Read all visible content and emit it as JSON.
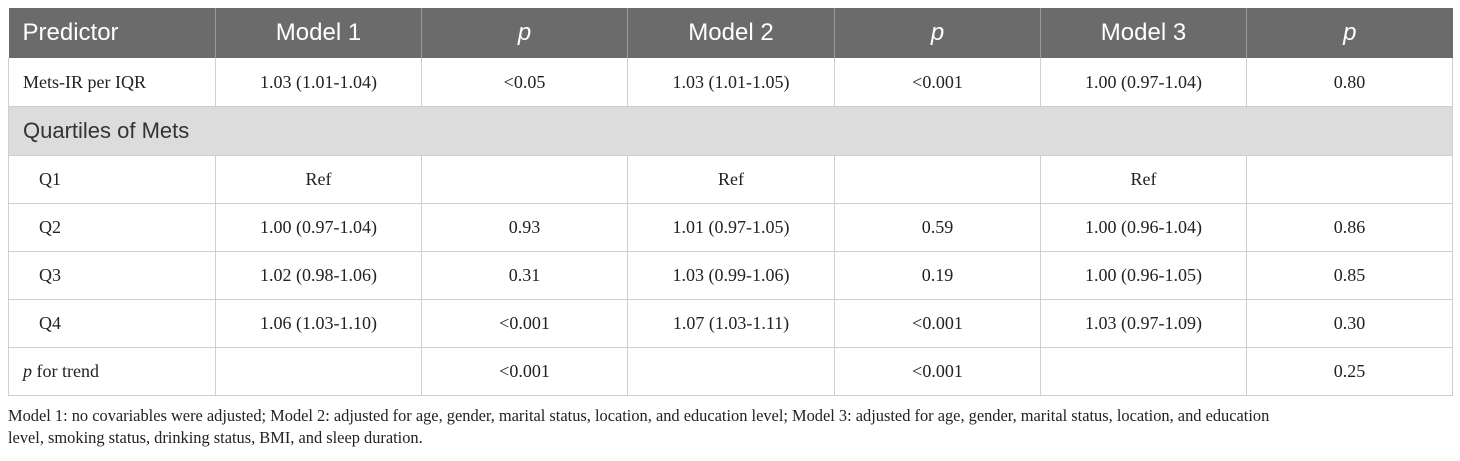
{
  "table": {
    "headers": [
      "Predictor",
      "Model 1",
      "p",
      "Model 2",
      "p",
      "Model 3",
      "p"
    ],
    "rows": [
      {
        "label": "Mets-IR per IQR",
        "cells": [
          "1.03 (1.01-1.04)",
          "<0.05",
          "1.03 (1.01-1.05)",
          "<0.001",
          "1.00 (0.97-1.04)",
          "0.80"
        ]
      },
      {
        "section": "Quartiles of Mets"
      },
      {
        "label": "Q1",
        "cells": [
          "Ref",
          "",
          "Ref",
          "",
          "Ref",
          ""
        ]
      },
      {
        "label": "Q2",
        "cells": [
          "1.00 (0.97-1.04)",
          "0.93",
          "1.01 (0.97-1.05)",
          "0.59",
          "1.00 (0.96-1.04)",
          "0.86"
        ]
      },
      {
        "label": "Q3",
        "cells": [
          "1.02 (0.98-1.06)",
          "0.31",
          "1.03 (0.99-1.06)",
          "0.19",
          "1.00 (0.96-1.05)",
          "0.85"
        ]
      },
      {
        "label": "Q4",
        "cells": [
          "1.06 (1.03-1.10)",
          "<0.001",
          "1.07 (1.03-1.11)",
          "<0.001",
          "1.03 (0.97-1.09)",
          "0.30"
        ]
      },
      {
        "label_italic": "p",
        "label_rest": " for trend",
        "cells": [
          "",
          "<0.001",
          "",
          "<0.001",
          "",
          "0.25"
        ]
      }
    ]
  },
  "footnote": {
    "line1": "Model 1: no covariables were adjusted; Model 2: adjusted for age, gender, marital status, location, and education level; Model 3: adjusted for age, gender, marital status, location, and education",
    "line2": "level, smoking status, drinking status, BMI, and sleep duration."
  }
}
